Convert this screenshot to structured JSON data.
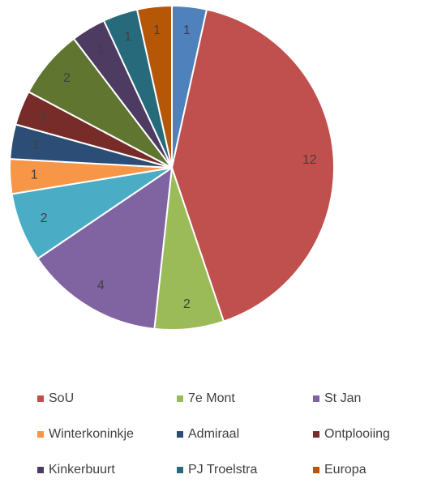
{
  "chart_data": {
    "type": "pie",
    "categories": [
      null,
      "SoU",
      "7e Mont",
      "St Jan",
      null,
      "Winterkoninkje",
      "Admiraal",
      "Ontplooiing",
      null,
      "Kinkerbuurt",
      "PJ Troelstra",
      "Europa"
    ],
    "values": [
      1,
      12,
      2,
      4,
      2,
      1,
      1,
      1,
      2,
      1,
      1,
      1
    ],
    "colors": [
      "#4F81BD",
      "#C0504D",
      "#9BBB59",
      "#8064A2",
      "#4BACC6",
      "#F79646",
      "#2C4D75",
      "#772C2A",
      "#5F7530",
      "#4D3B62",
      "#276A7C",
      "#B65708"
    ],
    "legend": "bottom"
  }
}
